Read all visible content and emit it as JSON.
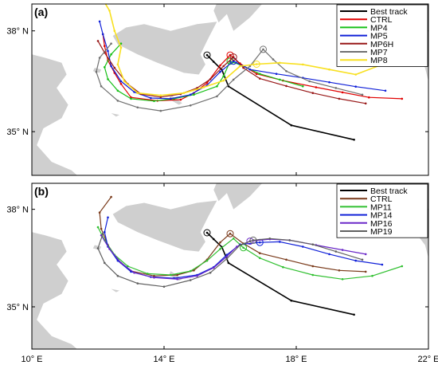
{
  "chart_data": [
    {
      "type": "line",
      "panel_label": "(a)",
      "xlim": [
        10,
        22
      ],
      "ylim": [
        33.7,
        38.8
      ],
      "x_ticks": [
        {
          "value": 10,
          "label": "10° E"
        },
        {
          "value": 14,
          "label": "14° E"
        },
        {
          "value": 18,
          "label": "18° E"
        },
        {
          "value": 22,
          "label": "22° E"
        }
      ],
      "y_ticks": [
        {
          "value": 35,
          "label": "35° N"
        },
        {
          "value": 38,
          "label": "38° N"
        }
      ],
      "legend_position": "top-right",
      "series": [
        {
          "name": "Best track",
          "color": "#000000",
          "width": 1.6,
          "points": [
            [
              19.75,
              34.76
            ],
            [
              17.85,
              35.19
            ],
            [
              15.95,
              36.35
            ],
            [
              15.75,
              36.84
            ],
            [
              15.5,
              37.08
            ],
            [
              15.3,
              37.28
            ]
          ],
          "marker_at": 5
        },
        {
          "name": "CTRL",
          "color": "#e00000",
          "width": 1.2,
          "points": [
            [
              21.2,
              35.98
            ],
            [
              20.2,
              36.02
            ],
            [
              19.4,
              36.17
            ],
            [
              18.6,
              36.32
            ],
            [
              17.6,
              36.52
            ],
            [
              16.8,
              36.72
            ],
            [
              16.3,
              37.03
            ],
            [
              16.0,
              37.28
            ],
            [
              15.7,
              36.97
            ],
            [
              15.3,
              36.45
            ],
            [
              14.9,
              36.15
            ],
            [
              14.5,
              35.95
            ],
            [
              13.8,
              35.92
            ],
            [
              13.0,
              36.02
            ],
            [
              12.7,
              36.42
            ],
            [
              12.5,
              36.75
            ],
            [
              12.3,
              37.12
            ],
            [
              12.2,
              37.55
            ],
            [
              12.15,
              37.9
            ]
          ],
          "marker_at": 7
        },
        {
          "name": "MP4",
          "color": "#18c018",
          "width": 1.2,
          "points": [
            [
              18.2,
              36.35
            ],
            [
              17.5,
              36.55
            ],
            [
              16.9,
              36.72
            ],
            [
              16.4,
              36.95
            ],
            [
              16.0,
              37.1
            ],
            [
              15.8,
              36.65
            ],
            [
              15.6,
              36.35
            ],
            [
              14.9,
              36.1
            ],
            [
              14.3,
              35.98
            ],
            [
              13.7,
              35.91
            ],
            [
              13.0,
              35.98
            ],
            [
              12.6,
              36.22
            ],
            [
              12.3,
              36.56
            ],
            [
              12.2,
              36.92
            ],
            [
              12.4,
              37.3
            ],
            [
              12.7,
              37.62
            ]
          ],
          "marker_at": 4
        },
        {
          "name": "MP5",
          "color": "#1020d8",
          "width": 1.2,
          "points": [
            [
              20.7,
              36.22
            ],
            [
              19.8,
              36.34
            ],
            [
              19.0,
              36.47
            ],
            [
              18.2,
              36.6
            ],
            [
              17.4,
              36.72
            ],
            [
              16.6,
              36.85
            ],
            [
              16.1,
              37.1
            ],
            [
              15.7,
              36.78
            ],
            [
              15.3,
              36.38
            ],
            [
              14.8,
              36.1
            ],
            [
              14.2,
              35.98
            ],
            [
              13.6,
              36.0
            ],
            [
              13.1,
              36.18
            ],
            [
              12.7,
              36.5
            ],
            [
              12.4,
              36.95
            ],
            [
              12.3,
              37.4
            ],
            [
              12.15,
              37.9
            ],
            [
              12.05,
              38.28
            ]
          ],
          "marker_at": 6
        },
        {
          "name": "MP6H",
          "color": "#981818",
          "width": 1.2,
          "points": [
            [
              20.1,
              35.84
            ],
            [
              19.3,
              35.98
            ],
            [
              18.5,
              36.15
            ],
            [
              17.7,
              36.36
            ],
            [
              16.9,
              36.58
            ],
            [
              16.4,
              36.9
            ],
            [
              16.1,
              37.22
            ],
            [
              15.8,
              36.95
            ],
            [
              15.4,
              36.56
            ],
            [
              15.0,
              36.3
            ],
            [
              14.5,
              36.12
            ],
            [
              13.9,
              36.03
            ],
            [
              13.3,
              36.12
            ],
            [
              12.9,
              36.42
            ],
            [
              12.5,
              36.9
            ],
            [
              12.2,
              37.35
            ],
            [
              12.0,
              37.7
            ]
          ],
          "marker_at": 6
        },
        {
          "name": "MP7",
          "color": "#707070",
          "width": 1.2,
          "points": [
            [
              20.0,
              36.1
            ],
            [
              19.2,
              36.3
            ],
            [
              18.4,
              36.5
            ],
            [
              17.7,
              36.8
            ],
            [
              17.3,
              37.15
            ],
            [
              17.0,
              37.45
            ],
            [
              16.6,
              36.95
            ],
            [
              16.1,
              36.55
            ],
            [
              15.6,
              36.05
            ],
            [
              14.8,
              35.78
            ],
            [
              13.9,
              35.62
            ],
            [
              13.2,
              35.72
            ],
            [
              12.6,
              35.92
            ],
            [
              12.1,
              36.35
            ],
            [
              11.95,
              36.78
            ],
            [
              12.05,
              37.2
            ],
            [
              12.4,
              37.62
            ]
          ],
          "marker_at": 5
        },
        {
          "name": "MP8",
          "color": "#f8e020",
          "width": 1.6,
          "points": [
            [
              21.4,
              37.13
            ],
            [
              20.6,
              37.0
            ],
            [
              19.8,
              36.7
            ],
            [
              19.0,
              36.85
            ],
            [
              18.2,
              37.0
            ],
            [
              17.5,
              37.05
            ],
            [
              16.8,
              37.01
            ],
            [
              16.3,
              36.95
            ],
            [
              15.8,
              36.52
            ],
            [
              15.2,
              36.32
            ],
            [
              14.6,
              36.15
            ],
            [
              13.9,
              36.08
            ],
            [
              13.2,
              36.15
            ],
            [
              12.8,
              36.5
            ],
            [
              12.6,
              37.0
            ],
            [
              12.7,
              37.5
            ],
            [
              12.5,
              38.0
            ],
            [
              12.35,
              38.6
            ],
            [
              12.2,
              38.85
            ]
          ],
          "marker_at": 6
        }
      ]
    },
    {
      "type": "line",
      "panel_label": "(b)",
      "xlim": [
        10,
        22
      ],
      "ylim": [
        33.7,
        38.8
      ],
      "x_ticks": [
        {
          "value": 10,
          "label": "10° E"
        },
        {
          "value": 14,
          "label": "14° E"
        },
        {
          "value": 18,
          "label": "18° E"
        },
        {
          "value": 22,
          "label": "22° E"
        }
      ],
      "y_ticks": [
        {
          "value": 35,
          "label": "35° N"
        },
        {
          "value": 38,
          "label": "38° N"
        }
      ],
      "legend_position": "top-right",
      "series": [
        {
          "name": "Best track",
          "color": "#000000",
          "width": 1.6,
          "points": [
            [
              19.75,
              34.76
            ],
            [
              17.85,
              35.19
            ],
            [
              15.95,
              36.35
            ],
            [
              15.75,
              36.84
            ],
            [
              15.5,
              37.08
            ],
            [
              15.3,
              37.28
            ]
          ],
          "marker_at": 5
        },
        {
          "name": "CTRL",
          "color": "#7a3a1a",
          "width": 1.2,
          "points": [
            [
              20.1,
              36.08
            ],
            [
              19.3,
              36.12
            ],
            [
              18.5,
              36.25
            ],
            [
              17.7,
              36.45
            ],
            [
              16.9,
              36.65
            ],
            [
              16.4,
              36.95
            ],
            [
              16.0,
              37.25
            ],
            [
              15.7,
              36.98
            ],
            [
              15.3,
              36.45
            ],
            [
              14.9,
              36.12
            ],
            [
              14.4,
              35.98
            ],
            [
              13.7,
              35.95
            ],
            [
              13.0,
              36.1
            ],
            [
              12.6,
              36.45
            ],
            [
              12.3,
              36.9
            ],
            [
              12.1,
              37.4
            ],
            [
              12.05,
              37.9
            ],
            [
              12.4,
              38.38
            ]
          ],
          "marker_at": 6
        },
        {
          "name": "MP11",
          "color": "#30c030",
          "width": 1.2,
          "points": [
            [
              21.2,
              36.25
            ],
            [
              20.3,
              35.95
            ],
            [
              19.4,
              35.85
            ],
            [
              18.5,
              35.98
            ],
            [
              17.6,
              36.22
            ],
            [
              16.9,
              36.5
            ],
            [
              16.4,
              36.82
            ],
            [
              16.1,
              37.1
            ],
            [
              15.7,
              36.78
            ],
            [
              15.3,
              36.42
            ],
            [
              14.8,
              36.1
            ],
            [
              14.2,
              35.98
            ],
            [
              13.5,
              36.02
            ],
            [
              12.9,
              36.25
            ],
            [
              12.5,
              36.6
            ],
            [
              12.2,
              37.05
            ],
            [
              12.0,
              37.45
            ]
          ],
          "marker_at": 6
        },
        {
          "name": "MP14",
          "color": "#1020d8",
          "width": 1.2,
          "points": [
            [
              20.6,
              36.3
            ],
            [
              19.8,
              36.42
            ],
            [
              19.0,
              36.62
            ],
            [
              18.2,
              36.85
            ],
            [
              17.5,
              37.0
            ],
            [
              16.9,
              36.98
            ],
            [
              16.3,
              36.92
            ],
            [
              15.9,
              36.6
            ],
            [
              15.5,
              36.22
            ],
            [
              15.0,
              35.98
            ],
            [
              14.3,
              35.88
            ],
            [
              13.6,
              35.92
            ],
            [
              13.0,
              36.08
            ],
            [
              12.6,
              36.42
            ],
            [
              12.3,
              36.85
            ],
            [
              12.2,
              37.3
            ],
            [
              12.3,
              37.75
            ]
          ],
          "marker_at": 5
        },
        {
          "name": "MP16",
          "color": "#6a28c8",
          "width": 1.2,
          "points": [
            [
              20.1,
              36.62
            ],
            [
              19.4,
              36.75
            ],
            [
              18.6,
              36.9
            ],
            [
              17.8,
              37.05
            ],
            [
              17.2,
              37.08
            ],
            [
              16.6,
              37.02
            ],
            [
              16.2,
              36.85
            ],
            [
              15.9,
              36.55
            ],
            [
              15.5,
              36.2
            ],
            [
              15.0,
              35.95
            ],
            [
              14.4,
              35.85
            ],
            [
              13.7,
              35.9
            ],
            [
              13.1,
              36.05
            ],
            [
              12.7,
              36.35
            ],
            [
              12.35,
              36.78
            ],
            [
              12.1,
              37.2
            ]
          ],
          "marker_at": 5
        },
        {
          "name": "MP19",
          "color": "#606060",
          "width": 1.2,
          "points": [
            [
              20.0,
              36.45
            ],
            [
              19.2,
              36.7
            ],
            [
              18.5,
              36.92
            ],
            [
              17.8,
              37.05
            ],
            [
              17.2,
              37.1
            ],
            [
              16.7,
              37.05
            ],
            [
              16.3,
              36.9
            ],
            [
              15.9,
              36.48
            ],
            [
              15.4,
              36.05
            ],
            [
              14.8,
              35.82
            ],
            [
              14.0,
              35.62
            ],
            [
              13.2,
              35.72
            ],
            [
              12.6,
              35.95
            ],
            [
              12.2,
              36.35
            ],
            [
              12.0,
              36.8
            ],
            [
              12.15,
              37.25
            ]
          ],
          "marker_at": 5
        }
      ]
    }
  ]
}
